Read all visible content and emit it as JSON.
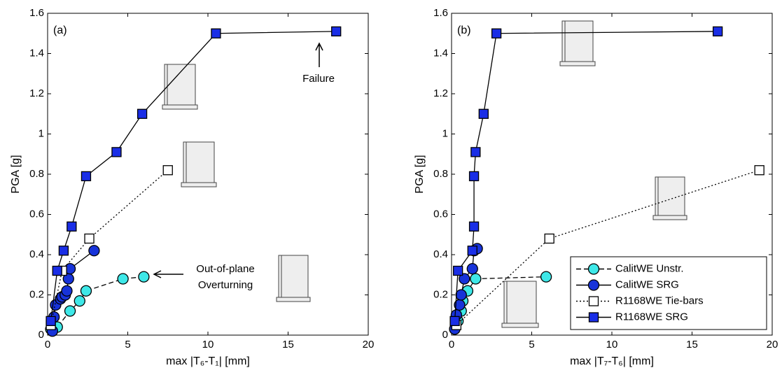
{
  "chart_data": [
    {
      "type": "scatter",
      "panel_label": "(a)",
      "xlabel": "max |T₆-T₁| [mm]",
      "ylabel": "PGA [g]",
      "xlim": [
        0,
        20
      ],
      "xticks": [
        0,
        5,
        10,
        15,
        20
      ],
      "ylim": [
        0,
        1.6
      ],
      "yticks": [
        0,
        0.2,
        0.4,
        0.6,
        0.8,
        1,
        1.2,
        1.4,
        1.6
      ],
      "annotations": [
        "Failure",
        "Out-of-plane",
        "Overturning"
      ],
      "series": [
        {
          "color": "#3ee8e8",
          "marker": "circle",
          "line_style": "dashed",
          "x": [
            0.2,
            0.6,
            1.4,
            2.0,
            2.4,
            4.7,
            6.0
          ],
          "values": [
            0.03,
            0.04,
            0.12,
            0.17,
            0.22,
            0.28,
            0.29
          ]
        },
        {
          "color": "#1733d9",
          "marker": "circle",
          "line_style": "solid",
          "x": [
            0.3,
            0.4,
            0.5,
            0.8,
            0.9,
            1.1,
            1.2,
            1.3,
            1.4,
            2.9
          ],
          "values": [
            0.02,
            0.09,
            0.15,
            0.18,
            0.19,
            0.2,
            0.22,
            0.28,
            0.33,
            0.42
          ]
        },
        {
          "color": "#ffffff",
          "marker": "square",
          "line_style": "dotted",
          "x": [
            0.2,
            0.9,
            2.6,
            7.5
          ],
          "values": [
            0.05,
            0.32,
            0.48,
            0.82
          ]
        },
        {
          "color": "#1a2ee6",
          "marker": "square",
          "line_style": "solid",
          "x": [
            0.2,
            0.6,
            1.0,
            1.5,
            2.4,
            4.3,
            5.9,
            10.5,
            18.0
          ],
          "values": [
            0.07,
            0.32,
            0.42,
            0.54,
            0.79,
            0.91,
            1.1,
            1.5,
            1.51
          ]
        }
      ]
    },
    {
      "type": "scatter",
      "panel_label": "(b)",
      "xlabel": "max |T₇-T₆| [mm]",
      "ylabel": "PGA [g]",
      "xlim": [
        0,
        20
      ],
      "xticks": [
        0,
        5,
        10,
        15,
        20
      ],
      "ylim": [
        0,
        1.6
      ],
      "yticks": [
        0,
        0.2,
        0.4,
        0.6,
        0.8,
        1,
        1.2,
        1.4,
        1.6
      ],
      "legend": "lower right",
      "series": [
        {
          "name": "CalitWE Unstr.",
          "color": "#3ee8e8",
          "marker": "circle",
          "line_style": "dashed",
          "x": [
            0.2,
            0.4,
            0.6,
            0.7,
            1.0,
            1.5,
            5.9
          ],
          "values": [
            0.03,
            0.07,
            0.12,
            0.17,
            0.22,
            0.28,
            0.29
          ]
        },
        {
          "name": "CalitWE SRG",
          "color": "#1733d9",
          "marker": "circle",
          "line_style": "solid",
          "x": [
            0.2,
            0.3,
            0.5,
            0.6,
            0.8,
            1.3,
            1.4,
            1.6
          ],
          "values": [
            0.03,
            0.1,
            0.15,
            0.2,
            0.28,
            0.33,
            0.42,
            0.43
          ]
        },
        {
          "name": "R1168WE Tie-bars",
          "color": "#ffffff",
          "marker": "square",
          "line_style": "dotted",
          "x": [
            0.3,
            6.1,
            19.2
          ],
          "values": [
            0.05,
            0.48,
            0.82
          ]
        },
        {
          "name": "R1168WE SRG",
          "color": "#1a2ee6",
          "marker": "square",
          "line_style": "solid",
          "x": [
            0.2,
            0.4,
            1.3,
            1.4,
            1.4,
            1.5,
            2.0,
            2.8,
            16.6
          ],
          "values": [
            0.07,
            0.32,
            0.42,
            0.54,
            0.79,
            0.91,
            1.1,
            1.5,
            1.51
          ]
        }
      ]
    }
  ]
}
